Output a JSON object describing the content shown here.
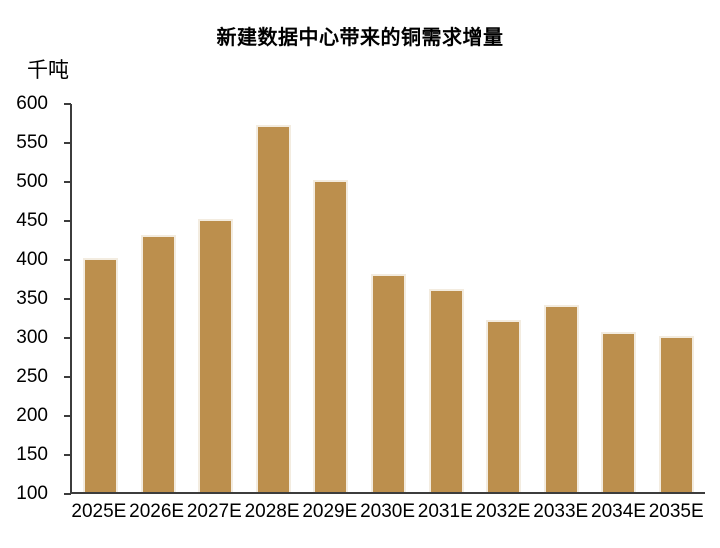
{
  "chart_data": {
    "type": "bar",
    "title": "新建数据中心带来的铜需求增量",
    "ylabel": "千吨",
    "xlabel": "",
    "categories": [
      "2025E",
      "2026E",
      "2027E",
      "2028E",
      "2029E",
      "2030E",
      "2031E",
      "2032E",
      "2033E",
      "2034E",
      "2035E"
    ],
    "values": [
      400,
      430,
      450,
      570,
      500,
      380,
      360,
      320,
      340,
      305,
      300
    ],
    "ylim": [
      100,
      600
    ],
    "ytick_step": 50,
    "ytick_labels": [
      "600",
      "550",
      "500",
      "450",
      "400",
      "350",
      "300",
      "250",
      "200",
      "150",
      "100"
    ],
    "grid": false,
    "legend": "none",
    "colors": {
      "bar_fill": "#BC8F4D",
      "bar_border": "#F3ECE0",
      "axis": "#3C3C3C",
      "text": "#000000",
      "background": "#FFFFFF"
    }
  }
}
